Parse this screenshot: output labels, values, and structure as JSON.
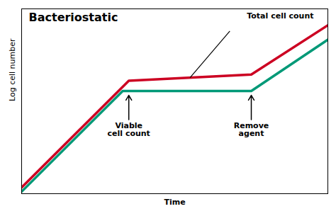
{
  "chart_data": {
    "type": "line",
    "title": "Bacteriostatic",
    "xlabel": "Time",
    "ylabel": "Log cell number",
    "series": [
      {
        "color": "#cc0022",
        "x": [
          0,
          3.5,
          7.5,
          10
        ],
        "values": [
          0.3,
          5.5,
          5.8,
          8.2
        ]
      },
      {
        "color": "#009977",
        "x": [
          0,
          3.3,
          7.5,
          10
        ],
        "values": [
          0.1,
          5.0,
          5.0,
          7.5
        ]
      }
    ],
    "xlim": [
      0,
      10
    ],
    "ylim": [
      0,
      9
    ],
    "tick_labels": false,
    "annotations": [
      "Total cell count",
      "Viable\ncell count",
      "Remove\nagent"
    ]
  }
}
